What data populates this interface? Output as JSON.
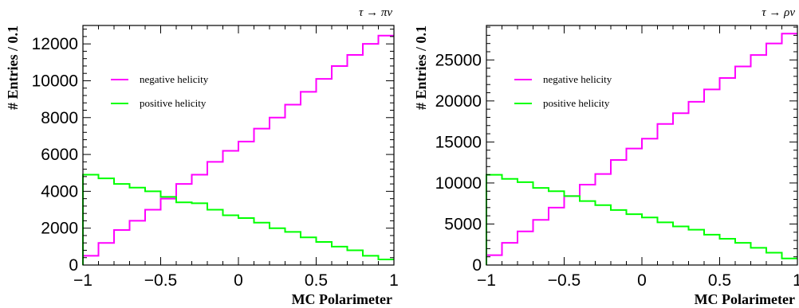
{
  "chart_data": [
    {
      "type": "histogram",
      "title": "τ → πν",
      "xlabel": "MC Polarimeter",
      "ylabel": "# Entries / 0.1",
      "xlim": [
        -1,
        1
      ],
      "ylim": [
        0,
        13000
      ],
      "x_ticks": [
        -1,
        -0.5,
        0,
        0.5,
        1
      ],
      "x_tick_labels": [
        "−1",
        "−0.5",
        "0",
        "0.5",
        "1"
      ],
      "y_ticks": [
        0,
        2000,
        4000,
        6000,
        8000,
        10000,
        12000
      ],
      "y_tick_labels": [
        "0",
        "2000",
        "4000",
        "6000",
        "8000",
        "10000",
        "12000"
      ],
      "bin_edges": [
        -1,
        -0.9,
        -0.8,
        -0.7,
        -0.6,
        -0.5,
        -0.4,
        -0.3,
        -0.2,
        -0.1,
        0,
        0.1,
        0.2,
        0.3,
        0.4,
        0.5,
        0.6,
        0.7,
        0.8,
        0.9,
        1
      ],
      "legend_placement": "upper-left",
      "series": [
        {
          "name": "negative helicity",
          "color": "#ff00ff",
          "values": [
            500,
            1200,
            1900,
            2400,
            3000,
            3600,
            4400,
            4900,
            5600,
            6200,
            6700,
            7400,
            8000,
            8700,
            9400,
            10100,
            10800,
            11400,
            12000,
            12450
          ]
        },
        {
          "name": "positive helicity",
          "color": "#00ff00",
          "values": [
            4900,
            4700,
            4400,
            4200,
            4000,
            3700,
            3400,
            3350,
            3000,
            2700,
            2550,
            2300,
            2000,
            1800,
            1500,
            1250,
            1000,
            800,
            500,
            300
          ]
        }
      ]
    },
    {
      "type": "histogram",
      "title": "τ → ρν",
      "xlabel": "MC Polarimeter",
      "ylabel": "# Entries / 0.1",
      "xlim": [
        -1,
        1
      ],
      "ylim": [
        0,
        29200
      ],
      "x_ticks": [
        -1,
        -0.5,
        0,
        0.5,
        1
      ],
      "x_tick_labels": [
        "−1",
        "−0.5",
        "0",
        "0.5",
        "1"
      ],
      "y_ticks": [
        0,
        5000,
        10000,
        15000,
        20000,
        25000
      ],
      "y_tick_labels": [
        "0",
        "5000",
        "10000",
        "15000",
        "20000",
        "25000"
      ],
      "bin_edges": [
        -1,
        -0.9,
        -0.8,
        -0.7,
        -0.6,
        -0.5,
        -0.4,
        -0.3,
        -0.2,
        -0.1,
        0,
        0.1,
        0.2,
        0.3,
        0.4,
        0.5,
        0.6,
        0.7,
        0.8,
        0.9,
        1
      ],
      "legend_placement": "upper-left",
      "series": [
        {
          "name": "negative helicity",
          "color": "#ff00ff",
          "values": [
            1200,
            2700,
            4100,
            5500,
            7000,
            8400,
            9800,
            11100,
            12800,
            14200,
            15400,
            17200,
            18500,
            19900,
            21400,
            22800,
            24200,
            25600,
            27000,
            28200
          ]
        },
        {
          "name": "positive helicity",
          "color": "#00ff00",
          "values": [
            11000,
            10500,
            10100,
            9400,
            9000,
            8400,
            7800,
            7300,
            6700,
            6200,
            5800,
            5200,
            4700,
            4300,
            3700,
            3200,
            2700,
            2100,
            1500,
            800
          ]
        }
      ]
    }
  ]
}
